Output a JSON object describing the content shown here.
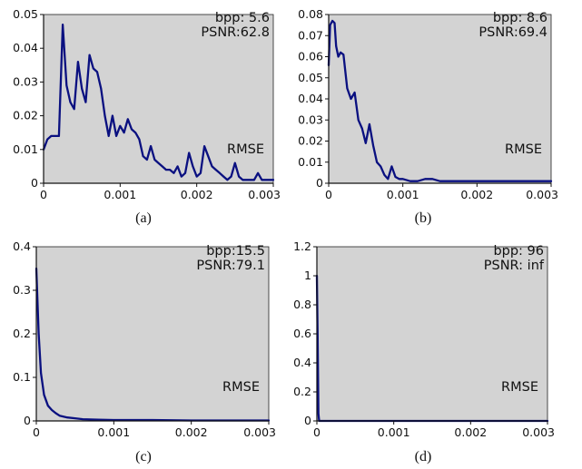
{
  "chart_data": [
    {
      "type": "line",
      "caption": "(a)",
      "annotation_lines": [
        "bpp: 5.6",
        "PSNR:62.8"
      ],
      "series_label": "RMSE",
      "xlim": [
        0,
        0.003
      ],
      "ylim": [
        0,
        0.05
      ],
      "x_ticks": [
        0,
        0.001,
        0.002,
        0.003
      ],
      "x_tick_labels": [
        "0",
        "0.001",
        "0.002",
        "0.003"
      ],
      "y_ticks": [
        0,
        0.01,
        0.02,
        0.03,
        0.04,
        0.05
      ],
      "y_tick_labels": [
        "0",
        "0.01",
        "0.02",
        "0.03",
        "0.04",
        "0.05"
      ],
      "series": [
        {
          "x": [
            0,
            5e-05,
            0.0001,
            0.00015,
            0.0002,
            0.00025,
            0.0003,
            0.00035,
            0.0004,
            0.00045,
            0.0005,
            0.00055,
            0.0006,
            0.00065,
            0.0007,
            0.00075,
            0.0008,
            0.00085,
            0.0009,
            0.00095,
            0.001,
            0.00105,
            0.0011,
            0.00115,
            0.0012,
            0.00125,
            0.0013,
            0.00135,
            0.0014,
            0.00145,
            0.0015,
            0.00155,
            0.0016,
            0.00165,
            0.0017,
            0.00175,
            0.0018,
            0.00185,
            0.0019,
            0.00195,
            0.002,
            0.00205,
            0.0021,
            0.00215,
            0.0022,
            0.00225,
            0.0023,
            0.00235,
            0.0024,
            0.00245,
            0.0025,
            0.00255,
            0.0026,
            0.00265,
            0.0027,
            0.00275,
            0.0028,
            0.00285,
            0.0029,
            0.00295,
            0.003
          ],
          "y": [
            0.01,
            0.013,
            0.014,
            0.014,
            0.014,
            0.047,
            0.029,
            0.024,
            0.022,
            0.036,
            0.028,
            0.024,
            0.038,
            0.034,
            0.033,
            0.028,
            0.02,
            0.014,
            0.02,
            0.014,
            0.017,
            0.015,
            0.019,
            0.016,
            0.015,
            0.013,
            0.008,
            0.007,
            0.011,
            0.007,
            0.006,
            0.005,
            0.004,
            0.004,
            0.003,
            0.005,
            0.002,
            0.003,
            0.009,
            0.005,
            0.002,
            0.003,
            0.011,
            0.008,
            0.005,
            0.004,
            0.003,
            0.002,
            0.001,
            0.002,
            0.006,
            0.002,
            0.001,
            0.001,
            0.001,
            0.001,
            0.003,
            0.001,
            0.001,
            0.001,
            0.001
          ]
        }
      ]
    },
    {
      "type": "line",
      "caption": "(b)",
      "annotation_lines": [
        "bpp: 8.6",
        "PSNR:69.4"
      ],
      "series_label": "RMSE",
      "xlim": [
        0,
        0.003
      ],
      "ylim": [
        0,
        0.08
      ],
      "x_ticks": [
        0,
        0.001,
        0.002,
        0.003
      ],
      "x_tick_labels": [
        "0",
        "0.001",
        "0.002",
        "0.003"
      ],
      "y_ticks": [
        0,
        0.01,
        0.02,
        0.03,
        0.04,
        0.05,
        0.06,
        0.07,
        0.08
      ],
      "y_tick_labels": [
        "0",
        "0.01",
        "0.02",
        "0.03",
        "0.04",
        "0.05",
        "0.06",
        "0.07",
        "0.08"
      ],
      "series": [
        {
          "x": [
            0,
            2e-05,
            5e-05,
            8e-05,
            0.0001,
            0.00013,
            0.00016,
            0.0002,
            0.00025,
            0.0003,
            0.00035,
            0.0004,
            0.00045,
            0.0005,
            0.00055,
            0.0006,
            0.00065,
            0.0007,
            0.00075,
            0.0008,
            0.00085,
            0.0009,
            0.00095,
            0.001,
            0.0011,
            0.0012,
            0.0013,
            0.0014,
            0.0015,
            0.0016,
            0.0017,
            0.0018,
            0.0019,
            0.002,
            0.0021,
            0.0022,
            0.0023,
            0.0024,
            0.0025,
            0.0026,
            0.0027,
            0.0028,
            0.0029,
            0.003
          ],
          "y": [
            0.056,
            0.075,
            0.077,
            0.076,
            0.065,
            0.06,
            0.062,
            0.061,
            0.045,
            0.04,
            0.043,
            0.03,
            0.026,
            0.019,
            0.028,
            0.018,
            0.01,
            0.008,
            0.004,
            0.002,
            0.008,
            0.003,
            0.002,
            0.002,
            0.001,
            0.001,
            0.002,
            0.002,
            0.001,
            0.001,
            0.001,
            0.001,
            0.001,
            0.001,
            0.001,
            0.001,
            0.001,
            0.001,
            0.001,
            0.001,
            0.001,
            0.001,
            0.001,
            0.001
          ]
        }
      ]
    },
    {
      "type": "line",
      "caption": "(c)",
      "annotation_lines": [
        "bpp:15.5",
        "PSNR:79.1"
      ],
      "series_label": "RMSE",
      "xlim": [
        0,
        0.003
      ],
      "ylim": [
        0,
        0.4
      ],
      "x_ticks": [
        0,
        0.001,
        0.002,
        0.003
      ],
      "x_tick_labels": [
        "0",
        "0.001",
        "0.002",
        "0.003"
      ],
      "y_ticks": [
        0,
        0.1,
        0.2,
        0.3,
        0.4
      ],
      "y_tick_labels": [
        "0",
        "0.1",
        "0.2",
        "0.3",
        "0.4"
      ],
      "series": [
        {
          "x": [
            0,
            3e-05,
            6e-05,
            0.0001,
            0.00015,
            0.0002,
            0.00025,
            0.0003,
            0.0004,
            0.0005,
            0.0006,
            0.0008,
            0.001,
            0.0015,
            0.002,
            0.0025,
            0.003
          ],
          "y": [
            0.35,
            0.2,
            0.11,
            0.06,
            0.035,
            0.025,
            0.018,
            0.012,
            0.008,
            0.006,
            0.004,
            0.003,
            0.002,
            0.002,
            0.001,
            0.001,
            0.001
          ]
        }
      ]
    },
    {
      "type": "line",
      "caption": "(d)",
      "annotation_lines": [
        "bpp: 96",
        "PSNR: inf"
      ],
      "series_label": "RMSE",
      "xlim": [
        0,
        0.003
      ],
      "ylim": [
        0,
        1.2
      ],
      "x_ticks": [
        0,
        0.001,
        0.002,
        0.003
      ],
      "x_tick_labels": [
        "0",
        "0.001",
        "0.002",
        "0.003"
      ],
      "y_ticks": [
        0,
        0.2,
        0.4,
        0.6,
        0.8,
        1,
        1.2
      ],
      "y_tick_labels": [
        "0",
        "0.2",
        "0.4",
        "0.6",
        "0.8",
        "1",
        "1.2"
      ],
      "series": [
        {
          "x": [
            0,
            1e-05,
            2e-05,
            3e-05,
            5e-05,
            0.001,
            0.002,
            0.003
          ],
          "y": [
            1.0,
            0.6,
            0.05,
            0.0,
            0.0,
            0.0,
            0.0,
            0.0
          ]
        }
      ]
    }
  ]
}
